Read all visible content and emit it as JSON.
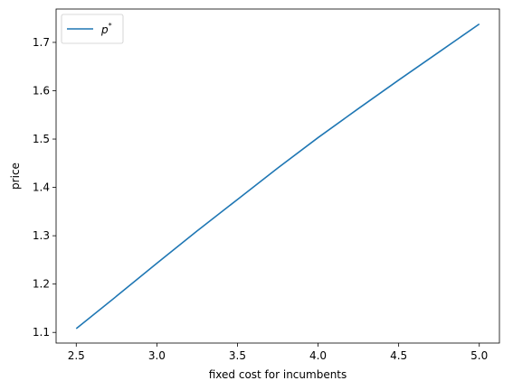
{
  "chart_data": {
    "type": "line",
    "xlabel": "fixed cost for incumbents",
    "ylabel": "price",
    "xlim": [
      2.375,
      5.125
    ],
    "ylim": [
      1.078,
      1.769
    ],
    "xticks": [
      2.5,
      3.0,
      3.5,
      4.0,
      4.5,
      5.0
    ],
    "xtick_labels": [
      "2.5",
      "3.0",
      "3.5",
      "4.0",
      "4.5",
      "5.0"
    ],
    "yticks": [
      1.1,
      1.2,
      1.3,
      1.4,
      1.5,
      1.6,
      1.7
    ],
    "ytick_labels": [
      "1.1",
      "1.2",
      "1.3",
      "1.4",
      "1.5",
      "1.6",
      "1.7"
    ],
    "grid": false,
    "legend": {
      "position": "top-left",
      "entries": [
        {
          "name_base": "p",
          "name_sup": "*"
        }
      ]
    },
    "series": [
      {
        "color": "#1f77b4",
        "x": [
          2.5,
          2.75,
          3.0,
          3.25,
          3.5,
          3.75,
          4.0,
          4.25,
          4.5,
          4.75,
          5.0
        ],
        "y": [
          1.108,
          1.175,
          1.243,
          1.31,
          1.375,
          1.44,
          1.503,
          1.563,
          1.622,
          1.68,
          1.738
        ]
      }
    ]
  }
}
